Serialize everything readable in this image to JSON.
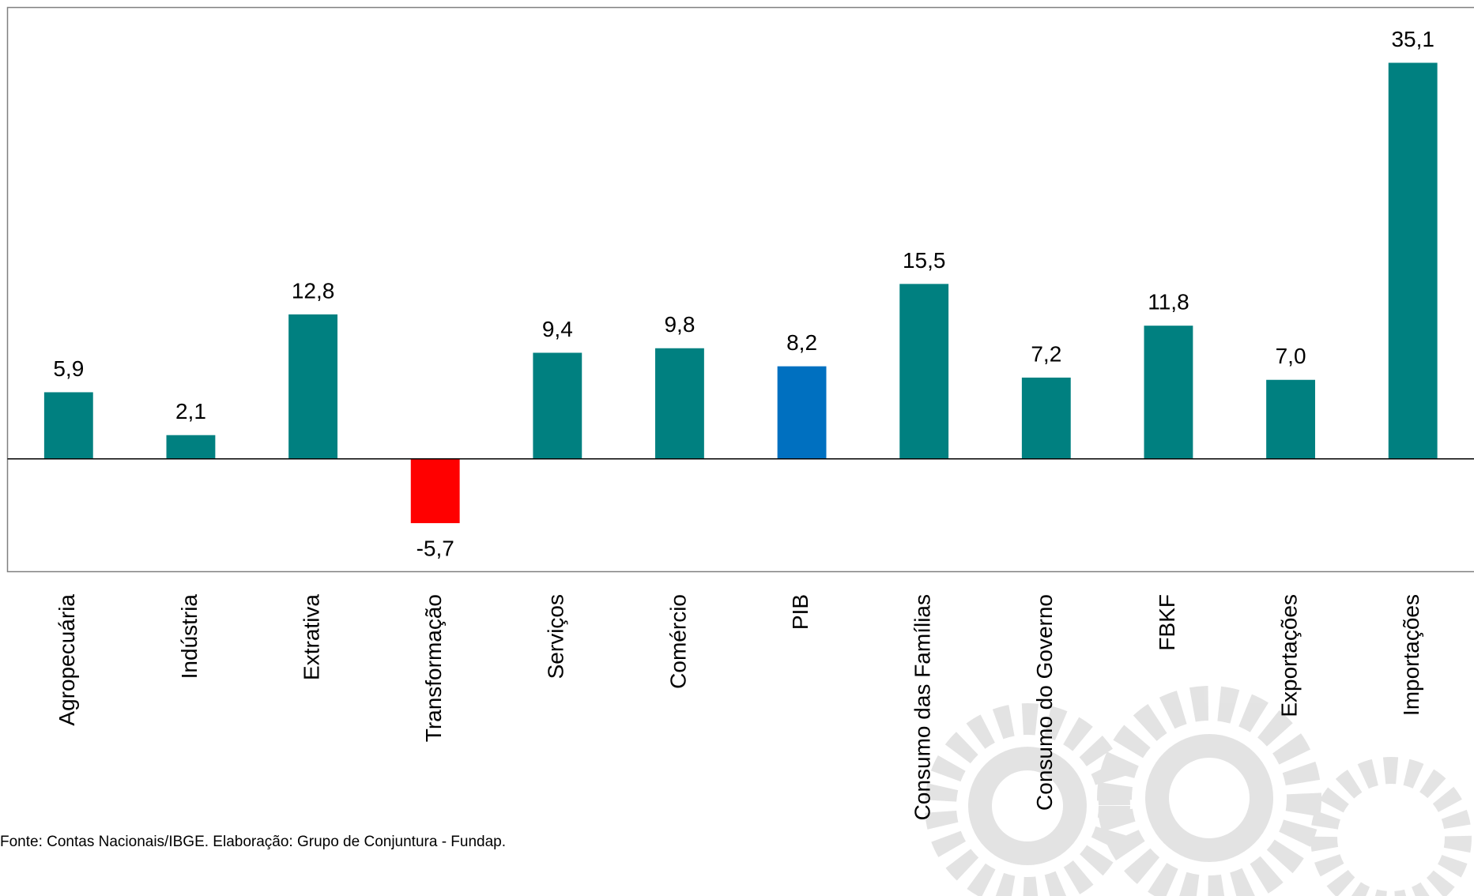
{
  "chart_data": {
    "type": "bar",
    "categories": [
      "Agropecuária",
      "Indústria",
      "Extrativa",
      "Transformação",
      "Serviços",
      "Comércio",
      "PIB",
      "Consumo das Famílias",
      "Consumo do Governo",
      "FBKF",
      "Exportações",
      "Importações"
    ],
    "values": [
      5.9,
      2.1,
      12.8,
      -5.7,
      9.4,
      9.8,
      8.2,
      15.5,
      7.2,
      11.8,
      7.0,
      35.1
    ],
    "value_labels": [
      "5,9",
      "2,1",
      "12,8",
      "-5,7",
      "9,4",
      "9,8",
      "8,2",
      "15,5",
      "7,2",
      "11,8",
      "7,0",
      "35,1"
    ],
    "colors": [
      "#008080",
      "#008080",
      "#008080",
      "#ff0000",
      "#008080",
      "#008080",
      "#0070c0",
      "#008080",
      "#008080",
      "#008080",
      "#008080",
      "#008080"
    ],
    "ylim": [
      -10,
      40
    ],
    "source": "Fonte: Contas Nacionais/IBGE. Elaboração: Grupo de Conjuntura - Fundap."
  }
}
